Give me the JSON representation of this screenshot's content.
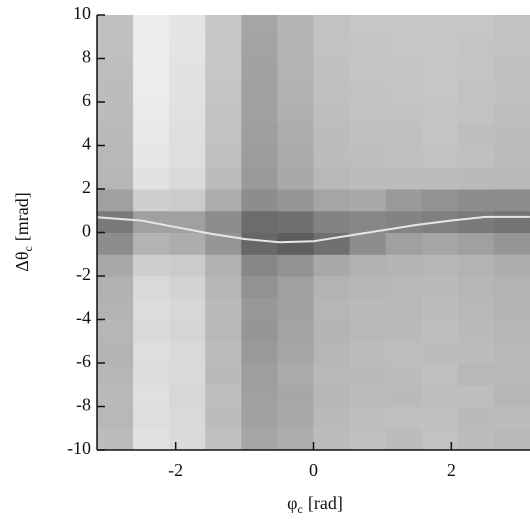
{
  "chart_data": {
    "type": "heatmap",
    "x_bins": [
      -3.1416,
      -2.618,
      -2.0944,
      -1.5708,
      -1.0472,
      -0.5236,
      0,
      0.5236,
      1.0472,
      1.5708,
      2.0944,
      2.618,
      3.1416
    ],
    "y_bins": [
      -10,
      -9,
      -8,
      -7,
      -6,
      -5,
      -4,
      -3,
      -2,
      -1,
      0,
      1,
      2,
      3,
      4,
      5,
      6,
      7,
      8,
      9,
      10
    ],
    "z": [
      [
        30,
        10,
        14,
        28,
        42,
        38,
        30,
        28,
        30,
        27,
        30,
        32
      ],
      [
        32,
        12,
        15,
        30,
        44,
        40,
        31,
        29,
        28,
        28,
        31,
        30
      ],
      [
        31,
        11,
        16,
        29,
        45,
        41,
        33,
        30,
        31,
        29,
        29,
        33
      ],
      [
        33,
        13,
        14,
        31,
        46,
        39,
        32,
        31,
        30,
        28,
        32,
        31
      ],
      [
        34,
        12,
        15,
        30,
        48,
        42,
        33,
        30,
        29,
        30,
        30,
        32
      ],
      [
        33,
        14,
        17,
        32,
        50,
        43,
        34,
        32,
        31,
        29,
        31,
        33
      ],
      [
        35,
        13,
        16,
        31,
        49,
        44,
        33,
        31,
        32,
        30,
        32,
        34
      ],
      [
        36,
        15,
        18,
        33,
        52,
        45,
        35,
        33,
        32,
        31,
        33,
        35
      ],
      [
        40,
        20,
        22,
        36,
        58,
        52,
        40,
        36,
        34,
        33,
        35,
        38
      ],
      [
        55,
        35,
        38,
        50,
        75,
        80,
        70,
        55,
        45,
        42,
        45,
        50
      ],
      [
        65,
        45,
        45,
        55,
        72,
        70,
        60,
        58,
        60,
        62,
        65,
        68
      ],
      [
        45,
        20,
        22,
        38,
        55,
        50,
        42,
        40,
        48,
        52,
        55,
        55
      ],
      [
        33,
        10,
        14,
        30,
        48,
        40,
        32,
        30,
        30,
        30,
        31,
        32
      ],
      [
        32,
        8,
        12,
        28,
        47,
        39,
        30,
        29,
        28,
        27,
        28,
        30
      ],
      [
        31,
        7,
        12,
        27,
        46,
        38,
        30,
        28,
        28,
        26,
        29,
        30
      ],
      [
        30,
        6,
        11,
        27,
        45,
        37,
        29,
        27,
        27,
        26,
        27,
        29
      ],
      [
        30,
        5,
        10,
        26,
        44,
        36,
        28,
        27,
        26,
        25,
        27,
        28
      ],
      [
        29,
        5,
        10,
        25,
        44,
        35,
        28,
        26,
        26,
        25,
        26,
        28
      ],
      [
        28,
        4,
        9,
        25,
        43,
        35,
        27,
        26,
        25,
        24,
        26,
        27
      ],
      [
        28,
        5,
        9,
        24,
        42,
        34,
        27,
        25,
        25,
        24,
        25,
        27
      ]
    ],
    "series": [
      {
        "type": "line",
        "color": "#e6e6e6",
        "x": [
          -3.14,
          -2.5,
          -2,
          -1.5,
          -1,
          -0.5,
          0,
          0.5,
          1,
          1.5,
          2,
          2.5,
          3.14
        ],
        "values": [
          0.7,
          0.55,
          0.25,
          -0.05,
          -0.3,
          -0.45,
          -0.4,
          -0.15,
          0.1,
          0.35,
          0.55,
          0.72,
          0.72
        ]
      }
    ],
    "xlim": [
      -3.1416,
      3.1416
    ],
    "ylim": [
      -10,
      10
    ],
    "xticks": [
      -2,
      0,
      2
    ],
    "yticks": [
      -10,
      -8,
      -6,
      -4,
      -2,
      0,
      2,
      4,
      6,
      8,
      10
    ],
    "xlabel": {
      "symbol": "φ",
      "subscript": "c",
      "unit": "[rad]"
    },
    "ylabel": {
      "symbol": "Δθ",
      "subscript": "c",
      "unit": "[mrad]"
    }
  }
}
